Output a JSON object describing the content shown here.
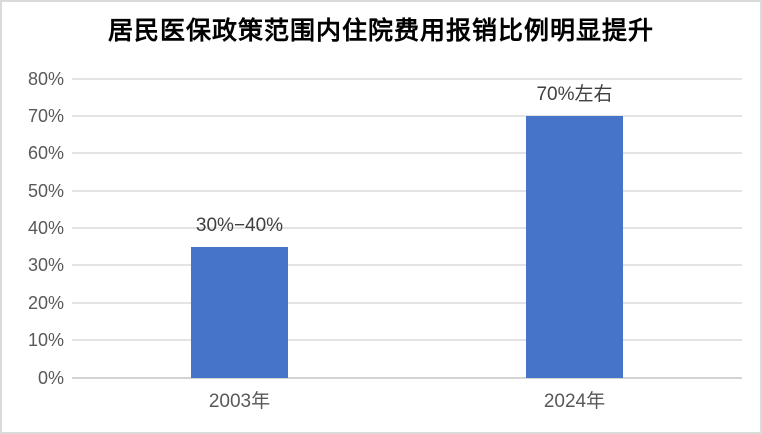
{
  "colors": {
    "background": "#FFFFFF",
    "frame_border": "#DADADA",
    "bar": "#4674C8",
    "gridline": "#E4E4E4",
    "axis_line": "#D4D4D4",
    "tick_text": "#595959",
    "category_text": "#595959",
    "data_label_text": "#3F3F3F",
    "title_text": "#000000"
  },
  "chart_data": {
    "type": "bar",
    "title": "居民医保政策范围内住院费用报销比例明显提升",
    "categories": [
      "2003年",
      "2024年"
    ],
    "values": [
      35,
      70
    ],
    "data_labels": [
      "30%−40%",
      "70%左右"
    ],
    "xlabel": "",
    "ylabel": "",
    "ylim": [
      0,
      80
    ],
    "ytick_step": 10,
    "yticks": [
      "0%",
      "10%",
      "20%",
      "30%",
      "40%",
      "50%",
      "60%",
      "70%",
      "80%"
    ],
    "grid": true,
    "legend": false,
    "bar_color_note": "solid blue bars, no border"
  }
}
